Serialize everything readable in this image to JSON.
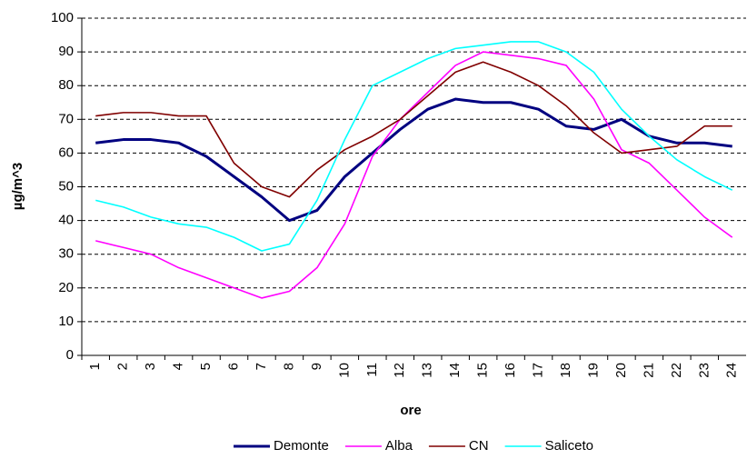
{
  "chart_data": {
    "type": "line",
    "xlabel": "ore",
    "ylabel": "µg/m^3",
    "categories": [
      "1",
      "2",
      "3",
      "4",
      "5",
      "6",
      "7",
      "8",
      "9",
      "10",
      "11",
      "12",
      "13",
      "14",
      "15",
      "16",
      "17",
      "18",
      "19",
      "20",
      "21",
      "22",
      "23",
      "24"
    ],
    "series": [
      {
        "name": "Demonte",
        "color": "#000080",
        "values": [
          63,
          64,
          64,
          63,
          59,
          53,
          47,
          40,
          43,
          53,
          60,
          67,
          73,
          76,
          75,
          75,
          73,
          68,
          67,
          70,
          65,
          63,
          63,
          62
        ]
      },
      {
        "name": "Alba",
        "color": "#ff00ff",
        "values": [
          34,
          32,
          30,
          26,
          23,
          20,
          17,
          19,
          26,
          39,
          59,
          70,
          78,
          86,
          90,
          89,
          88,
          86,
          76,
          61,
          57,
          49,
          41,
          35
        ]
      },
      {
        "name": "CN",
        "color": "#800000",
        "values": [
          71,
          72,
          72,
          71,
          71,
          57,
          50,
          47,
          55,
          61,
          65,
          70,
          77,
          84,
          87,
          84,
          80,
          74,
          66,
          60,
          61,
          62,
          68,
          68
        ]
      },
      {
        "name": "Saliceto",
        "color": "#00ffff",
        "values": [
          46,
          44,
          41,
          39,
          38,
          35,
          31,
          33,
          46,
          64,
          80,
          84,
          88,
          91,
          92,
          93,
          93,
          90,
          84,
          73,
          65,
          58,
          53,
          49
        ]
      }
    ],
    "ylim": [
      0,
      100
    ],
    "yticks": [
      0,
      10,
      20,
      30,
      40,
      50,
      60,
      70,
      80,
      90,
      100
    ],
    "grid": true,
    "legend": "bottom"
  }
}
